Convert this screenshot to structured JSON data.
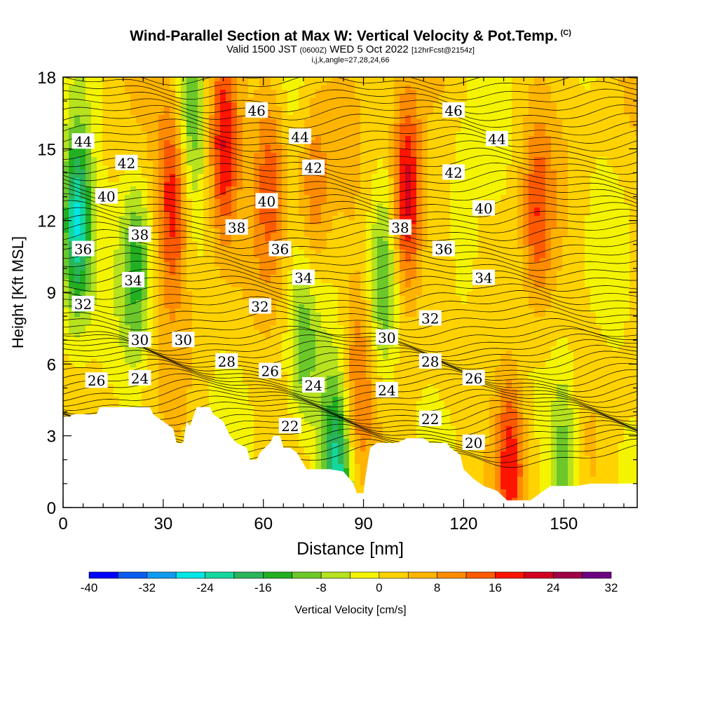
{
  "title": {
    "main": "Wind-Parallel Section at Max W: Vertical Velocity & Pot.Temp.",
    "mark": "(C)",
    "valid_prefix": "Valid 1500 JST",
    "valid_utc": "(0600Z)",
    "valid_date": "WED 5 Oct 2022",
    "fcst": "[12hrFcst@2154z]",
    "ijk": "i,j,k,angle=27,28,24,66"
  },
  "chart_data": {
    "type": "heatmap",
    "xlabel": "Distance [nm]",
    "ylabel": "Height [Kft MSL]",
    "xlim": [
      0,
      172
    ],
    "ylim": [
      0,
      18
    ],
    "xticks": [
      0,
      30,
      60,
      90,
      120,
      150
    ],
    "yticks": [
      0,
      3,
      6,
      9,
      12,
      15,
      18
    ],
    "colorbar": {
      "label": "Vertical Velocity [cm/s]",
      "tick_labels": [
        "-40",
        "-32",
        "-24",
        "-16",
        "-8",
        "0",
        "8",
        "16",
        "24",
        "32"
      ],
      "levels": [
        -40,
        -36,
        -32,
        -28,
        -24,
        -20,
        -16,
        -12,
        -8,
        -4,
        0,
        4,
        8,
        12,
        16,
        20,
        24,
        28,
        32
      ],
      "colors": [
        "#0000ff",
        "#0a5cf0",
        "#0f9bf0",
        "#00e6e6",
        "#13d89e",
        "#2ab55a",
        "#22b022",
        "#6cc82a",
        "#b6e21e",
        "#f4f400",
        "#ffd200",
        "#ffb400",
        "#ff8c00",
        "#ff5a00",
        "#ff1400",
        "#d2001e",
        "#a00046",
        "#6e0082"
      ]
    },
    "vertical_velocity_features": [
      {
        "x": 4,
        "y": 12,
        "w": -28
      },
      {
        "x": 22,
        "y": 10,
        "w": -14
      },
      {
        "x": 33,
        "y": 13,
        "w": 18
      },
      {
        "x": 38,
        "y": 17,
        "w": -12
      },
      {
        "x": 48,
        "y": 15,
        "w": 20
      },
      {
        "x": 62,
        "y": 14,
        "w": 12
      },
      {
        "x": 75,
        "y": 13,
        "w": 10
      },
      {
        "x": 72,
        "y": 7,
        "w": -10
      },
      {
        "x": 82,
        "y": 1.5,
        "w": -24
      },
      {
        "x": 88,
        "y": 5,
        "w": 10
      },
      {
        "x": 96,
        "y": 9,
        "w": -14
      },
      {
        "x": 103,
        "y": 13,
        "w": 24
      },
      {
        "x": 120,
        "y": 11,
        "w": -8
      },
      {
        "x": 134,
        "y": 2.2,
        "w": 18
      },
      {
        "x": 142,
        "y": 12,
        "w": 12
      },
      {
        "x": 150,
        "y": 2,
        "w": -14
      }
    ],
    "theta_contours": {
      "levels": [
        20,
        22,
        24,
        26,
        28,
        30,
        32,
        34,
        36,
        38,
        40,
        42,
        44,
        46
      ],
      "labels": [
        {
          "text": "44",
          "x": 6,
          "y": 15.3
        },
        {
          "text": "42",
          "x": 19,
          "y": 14.4
        },
        {
          "text": "40",
          "x": 13,
          "y": 13.0
        },
        {
          "text": "38",
          "x": 23,
          "y": 11.4
        },
        {
          "text": "36",
          "x": 6,
          "y": 10.8
        },
        {
          "text": "34",
          "x": 21,
          "y": 9.5
        },
        {
          "text": "32",
          "x": 6,
          "y": 8.5
        },
        {
          "text": "30",
          "x": 23,
          "y": 7.0
        },
        {
          "text": "30",
          "x": 36,
          "y": 7.0
        },
        {
          "text": "26",
          "x": 10,
          "y": 5.3
        },
        {
          "text": "24",
          "x": 23,
          "y": 5.4
        },
        {
          "text": "28",
          "x": 49,
          "y": 6.1
        },
        {
          "text": "26",
          "x": 62,
          "y": 5.7
        },
        {
          "text": "24",
          "x": 75,
          "y": 5.1
        },
        {
          "text": "22",
          "x": 68,
          "y": 3.4
        },
        {
          "text": "46",
          "x": 58,
          "y": 16.6
        },
        {
          "text": "44",
          "x": 71,
          "y": 15.5
        },
        {
          "text": "42",
          "x": 75,
          "y": 14.2
        },
        {
          "text": "40",
          "x": 61,
          "y": 12.8
        },
        {
          "text": "38",
          "x": 52,
          "y": 11.7
        },
        {
          "text": "36",
          "x": 65,
          "y": 10.8
        },
        {
          "text": "34",
          "x": 72,
          "y": 9.6
        },
        {
          "text": "32",
          "x": 59,
          "y": 8.4
        },
        {
          "text": "30",
          "x": 97,
          "y": 7.1
        },
        {
          "text": "28",
          "x": 110,
          "y": 6.1
        },
        {
          "text": "24",
          "x": 97,
          "y": 4.9
        },
        {
          "text": "22",
          "x": 110,
          "y": 3.7
        },
        {
          "text": "20",
          "x": 123,
          "y": 2.7
        },
        {
          "text": "26",
          "x": 123,
          "y": 5.4
        },
        {
          "text": "32",
          "x": 110,
          "y": 7.9
        },
        {
          "text": "34",
          "x": 126,
          "y": 9.6
        },
        {
          "text": "36",
          "x": 114,
          "y": 10.8
        },
        {
          "text": "38",
          "x": 101,
          "y": 11.7
        },
        {
          "text": "40",
          "x": 126,
          "y": 12.5
        },
        {
          "text": "42",
          "x": 117,
          "y": 14.0
        },
        {
          "text": "44",
          "x": 130,
          "y": 15.4
        },
        {
          "text": "46",
          "x": 117,
          "y": 16.6
        }
      ]
    },
    "terrain_profile": [
      [
        0,
        3.8
      ],
      [
        2,
        3.8
      ],
      [
        3,
        3.9
      ],
      [
        10,
        3.9
      ],
      [
        11,
        4.2
      ],
      [
        26,
        4.2
      ],
      [
        27,
        3.9
      ],
      [
        30,
        3.6
      ],
      [
        33,
        3.3
      ],
      [
        34,
        2.7
      ],
      [
        36,
        2.7
      ],
      [
        37,
        3.6
      ],
      [
        38,
        3.4
      ],
      [
        39,
        3.8
      ],
      [
        40,
        4.2
      ],
      [
        44,
        4.2
      ],
      [
        45,
        3.9
      ],
      [
        48,
        3.6
      ],
      [
        50,
        3.0
      ],
      [
        52,
        2.7
      ],
      [
        55,
        2.5
      ],
      [
        56,
        2.0
      ],
      [
        58,
        2.0
      ],
      [
        59,
        2.3
      ],
      [
        62,
        2.7
      ],
      [
        63,
        3.0
      ],
      [
        65,
        3.0
      ],
      [
        66,
        2.5
      ],
      [
        68,
        2.5
      ],
      [
        70,
        2.3
      ],
      [
        73,
        1.6
      ],
      [
        80,
        1.6
      ],
      [
        84,
        1.5
      ],
      [
        87,
        1.0
      ],
      [
        88,
        0.6
      ],
      [
        90,
        0.6
      ],
      [
        90.5,
        1.2
      ],
      [
        92,
        2.5
      ],
      [
        94,
        2.7
      ],
      [
        100,
        2.7
      ],
      [
        103,
        2.9
      ],
      [
        108,
        2.9
      ],
      [
        110,
        2.7
      ],
      [
        115,
        2.7
      ],
      [
        116,
        2.5
      ],
      [
        119,
        2.2
      ],
      [
        120,
        1.6
      ],
      [
        123,
        1.2
      ],
      [
        126,
        0.9
      ],
      [
        130,
        0.7
      ],
      [
        133,
        0.3
      ],
      [
        140,
        0.3
      ],
      [
        143,
        0.6
      ],
      [
        146,
        0.9
      ],
      [
        154,
        0.9
      ],
      [
        158,
        1.0
      ],
      [
        172,
        1.0
      ]
    ]
  }
}
